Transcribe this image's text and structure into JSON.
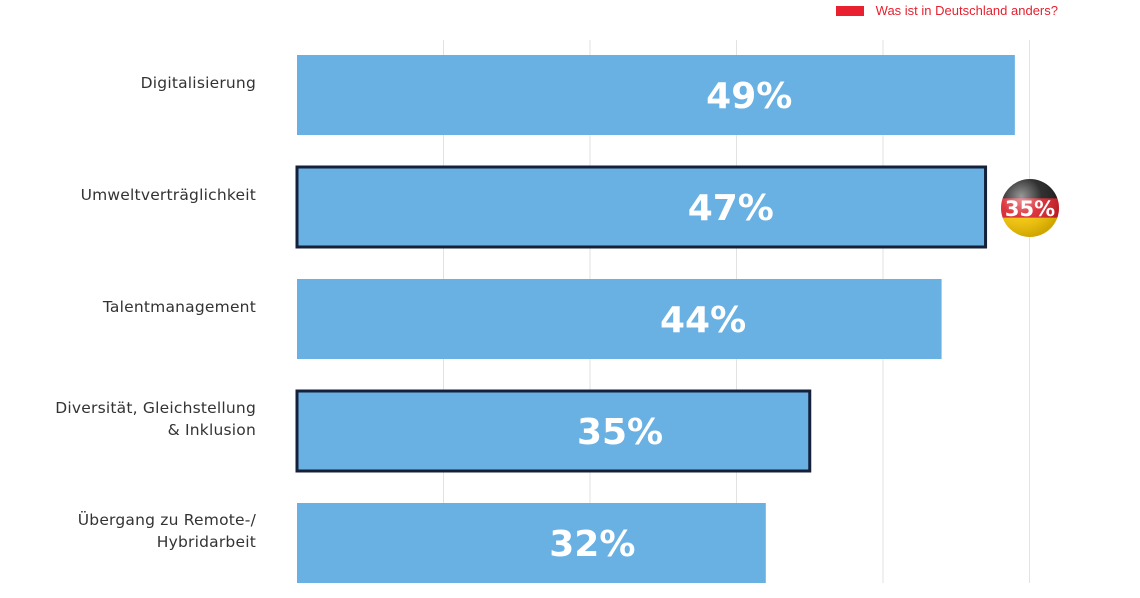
{
  "legend": {
    "label": "Was ist in Deutschland anders?",
    "color": "#e8202f"
  },
  "colors": {
    "bar": "#69b0e3",
    "highlight_border": "#15213a",
    "grid": "#e2e2e2"
  },
  "chart_data": {
    "type": "bar",
    "orientation": "horizontal",
    "categories": [
      "Digitalisierung",
      "Umweltverträglichkeit",
      "Talentmanagement",
      "Diversität, Gleichstellung & Inklusion",
      "Übergang zu Remote-/ Hybridarbeit"
    ],
    "category_lines": [
      [
        "Digitalisierung"
      ],
      [
        "Umweltverträglichkeit"
      ],
      [
        "Talentmanagement"
      ],
      [
        "Diversität, Gleichstellung",
        "& Inklusion"
      ],
      [
        "Übergang zu Remote-/",
        "Hybridarbeit"
      ]
    ],
    "values": [
      49,
      47,
      44,
      35,
      32
    ],
    "value_labels": [
      "49%",
      "47%",
      "44%",
      "35%",
      "32%"
    ],
    "highlighted": [
      false,
      true,
      false,
      true,
      false
    ],
    "germany_values": [
      null,
      35,
      null,
      null,
      null
    ],
    "germany_labels": [
      null,
      "35%",
      null,
      null,
      null
    ],
    "xlim": [
      0,
      50
    ],
    "grid": true,
    "legend_position": "top-right"
  }
}
